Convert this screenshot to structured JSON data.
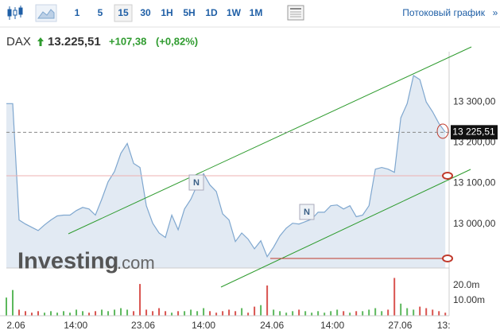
{
  "toolbar": {
    "intervals": [
      "1",
      "5",
      "15",
      "30",
      "1H",
      "5H",
      "1D",
      "1W",
      "1M"
    ],
    "selected": "15",
    "streaming": "Потоковый график",
    "more": "»"
  },
  "header": {
    "symbol": "DAX",
    "price": "13.225,51",
    "change": "+107,38",
    "change_pct": "(+0,82%)"
  },
  "chart_data": {
    "type": "area",
    "watermark": [
      "Investing",
      ".com"
    ],
    "markers": [
      "N",
      "N"
    ],
    "last_price_label": "13 225,51",
    "x": [
      0,
      1,
      2,
      3,
      4,
      5,
      6,
      7,
      8,
      9,
      10,
      11,
      12,
      13,
      14,
      15,
      16,
      17,
      18,
      19,
      20,
      21,
      22,
      23,
      24,
      25,
      26,
      27,
      28,
      29,
      30,
      31,
      32,
      33,
      34,
      35,
      36,
      37,
      38,
      39,
      40,
      41,
      42,
      43,
      44,
      45,
      46,
      47,
      48,
      49,
      50,
      51,
      52,
      53,
      54,
      55,
      56,
      57,
      58,
      59,
      60,
      61,
      62,
      63,
      64,
      65,
      66,
      67,
      68,
      69
    ],
    "xlim": [
      0,
      69.6
    ],
    "xticks": [
      {
        "value": 1.5,
        "label": "2.06"
      },
      {
        "value": 10.9,
        "label": "14:00"
      },
      {
        "value": 21.5,
        "label": "23.06"
      },
      {
        "value": 31,
        "label": "14:00"
      },
      {
        "value": 41.75,
        "label": "24.06"
      },
      {
        "value": 51.25,
        "label": "14:00"
      },
      {
        "value": 61.9,
        "label": "27.06"
      },
      {
        "value": 68.75,
        "label": "13:"
      }
    ],
    "series": [
      {
        "name": "DAX",
        "color": "#7fa7cf",
        "fill": "#e2eaf3",
        "values": [
          13296,
          13296,
          13010,
          13000,
          12992,
          12984,
          12998,
          13010,
          13020,
          13022,
          13022,
          13033,
          13041,
          13037,
          13022,
          13061,
          13104,
          13129,
          13174,
          13198,
          13149,
          13139,
          13045,
          13002,
          12978,
          12967,
          13022,
          12986,
          13037,
          13061,
          13096,
          13124,
          13096,
          13080,
          13025,
          13010,
          12957,
          12978,
          12963,
          12939,
          12959,
          12920,
          12943,
          12971,
          12990,
          13002,
          13000,
          13006,
          13012,
          13029,
          13029,
          13045,
          13047,
          13037,
          13045,
          13018,
          13022,
          13045,
          13135,
          13139,
          13135,
          13127,
          13261,
          13296,
          13365,
          13355,
          13300,
          13276,
          13247,
          13225.51
        ]
      },
      {
        "name": "Volume",
        "axis": "volume",
        "up_color": "#5cb85c",
        "down_color": "#d9534f",
        "values": [
          12,
          17,
          4,
          3,
          2,
          3,
          2,
          3,
          2,
          3,
          2,
          4,
          3,
          2,
          3,
          4,
          3,
          4,
          5,
          4,
          3,
          21,
          4,
          3,
          5,
          3,
          2,
          3,
          3,
          4,
          3,
          5,
          3,
          2,
          3,
          4,
          3,
          5,
          2,
          6,
          7,
          20,
          4,
          3,
          2,
          3,
          4,
          3,
          2,
          3,
          2,
          3,
          4,
          3,
          2,
          3,
          3,
          4,
          5,
          3,
          4,
          25,
          8,
          5,
          4,
          6,
          5,
          4,
          3,
          2
        ]
      }
    ],
    "ylim": [
      12892,
      13404
    ],
    "yticks": [
      {
        "value": 13000,
        "label": "13 000,00"
      },
      {
        "value": 13100,
        "label": "13 100,00"
      },
      {
        "value": 13200,
        "label": "13 200,00"
      },
      {
        "value": 13300,
        "label": "13 300,00"
      }
    ],
    "volume_ylim": [
      0,
      30
    ],
    "volume_yticks": [
      {
        "value": 10,
        "label": "10.00m"
      },
      {
        "value": 20,
        "label": "20.0m"
      }
    ],
    "grid": false
  }
}
